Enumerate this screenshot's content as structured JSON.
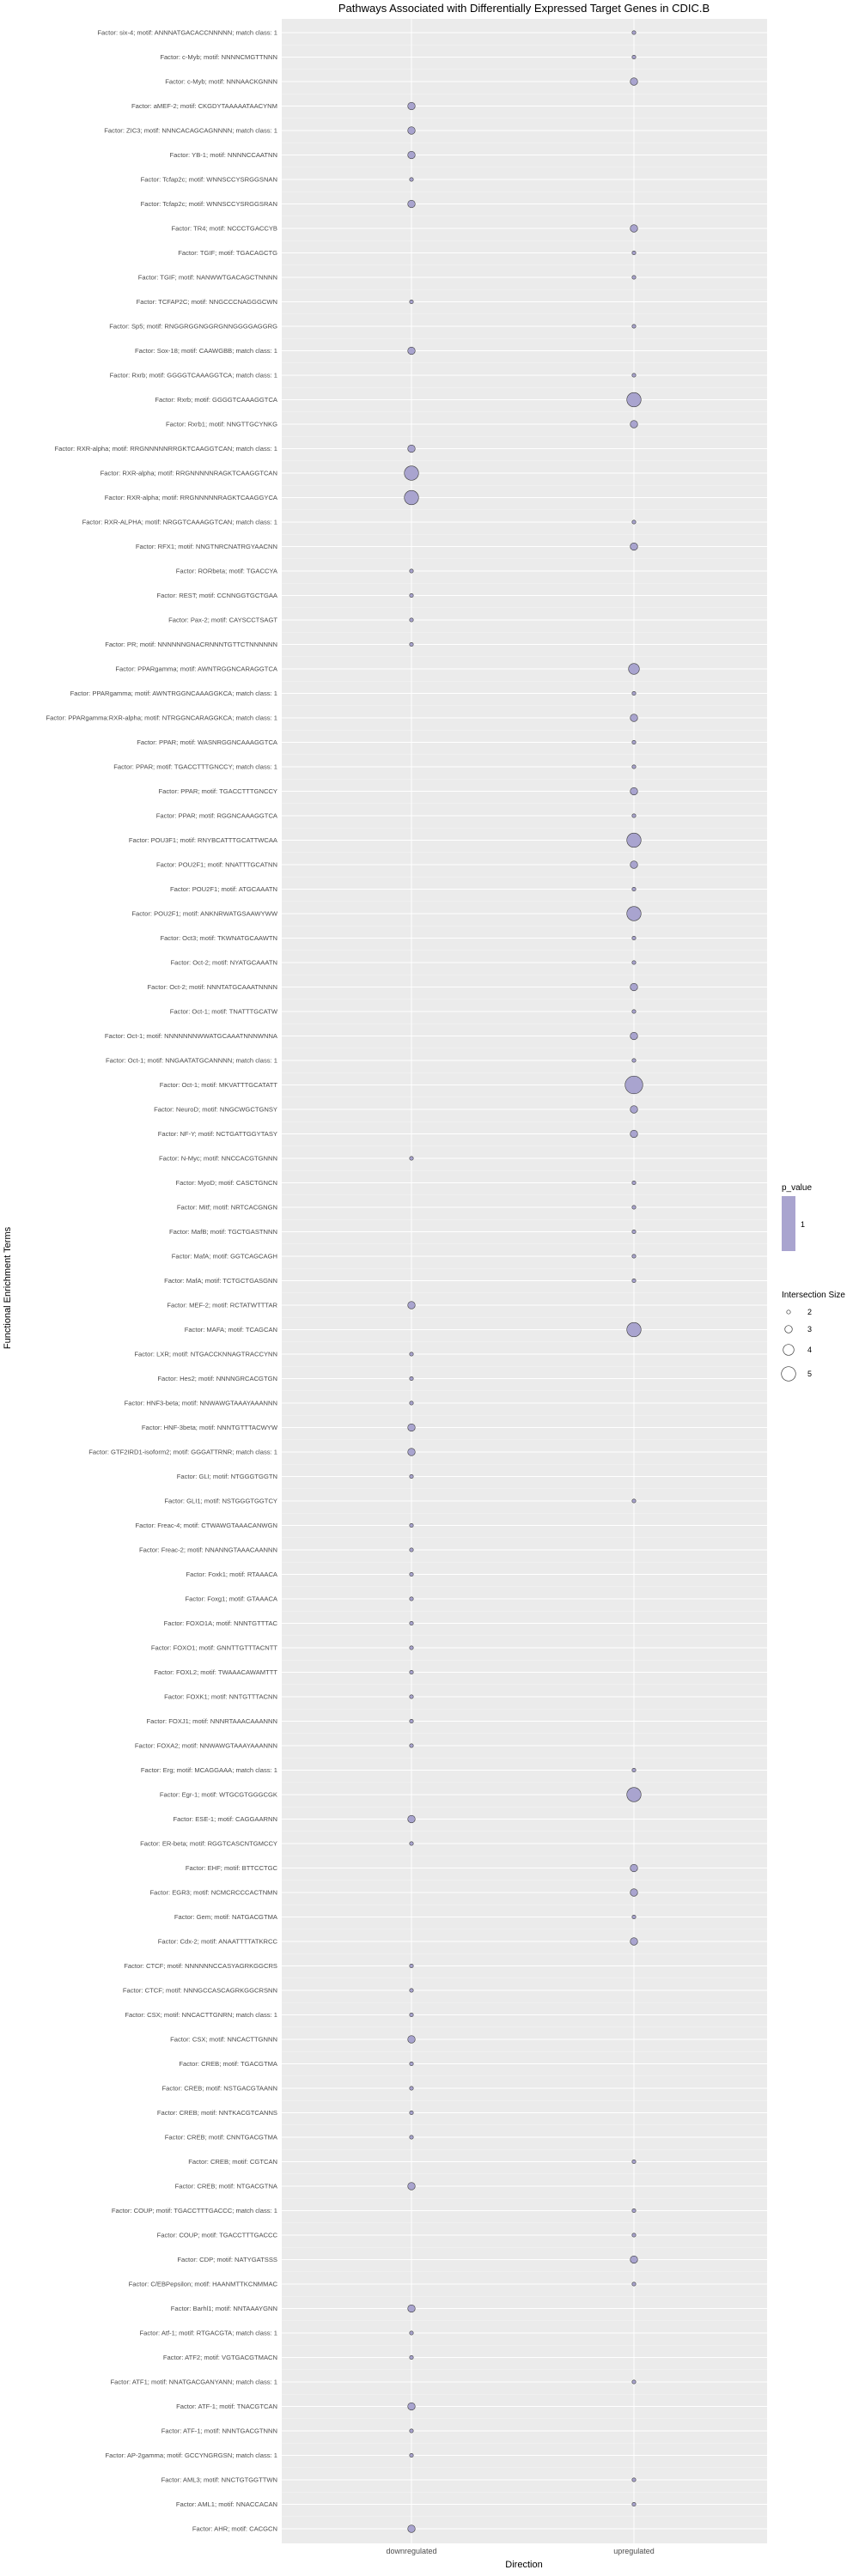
{
  "chart_data": {
    "type": "scatter",
    "title": "Pathways Associated with Differentially Expressed Target Genes in CDIC.B",
    "xlabel": "Direction",
    "ylabel": "Functional Enrichment Terms",
    "categories": [
      "downregulated",
      "upregulated"
    ],
    "terms": [
      "Factor: six-4; motif: ANNNATGACACCNNNNN; match class: 1",
      "Factor: c-Myb; motif: NNNNCMGTTNNN",
      "Factor: c-Myb; motif: NNNAACKGNNN",
      "Factor: aMEF-2; motif: CKGDYTAAAAATAACYNM",
      "Factor: ZIC3; motif: NNNCACAGCAGNNNN; match class: 1",
      "Factor: YB-1; motif: NNNNCCAATNN",
      "Factor: Tcfap2c; motif: WNNSCCYSRGGSNAN",
      "Factor: Tcfap2c; motif: WNNSCCYSRGGSRAN",
      "Factor: TR4; motif: NCCCTGACCYB",
      "Factor: TGIF; motif: TGACAGCTG",
      "Factor: TGIF; motif: NANWWTGACAGCTNNNN",
      "Factor: TCFAP2C; motif: NNGCCCNAGGGCWN",
      "Factor: Sp5; motif: RNGGRGGNGGRGNNGGGGAGGRG",
      "Factor: Sox-18; motif: CAAWGBB; match class: 1",
      "Factor: Rxrb; motif: GGGGTCAAAGGTCA; match class: 1",
      "Factor: Rxrb; motif: GGGGTCAAAGGTCA",
      "Factor: Rxrb1; motif: NNGTTGCYNKG",
      "Factor: RXR-alpha; motif: RRGNNNNNRRGKTCAAGGTCAN; match class: 1",
      "Factor: RXR-alpha; motif: RRGNNNNNRAGKTCAAGGTCAN",
      "Factor: RXR-alpha; motif: RRGNNNNNRAGKTCAAGGYCA",
      "Factor: RXR-ALPHA; motif: NRGGTCAAAGGTCAN; match class: 1",
      "Factor: RFX1; motif: NNGTNRCNATRGYAACNN",
      "Factor: RORbeta; motif: TGACCYA",
      "Factor: REST; motif: CCNNGGTGCTGAA",
      "Factor: Pax-2; motif: CAYSCCTSAGT",
      "Factor: PR; motif: NNNNNNGNACRNNNTGTTCTNNNNNN",
      "Factor: PPARgamma; motif: AWNTRGGNCARAGGTCA",
      "Factor: PPARgamma; motif: AWNTRGGNCAAAGGKCA; match class: 1",
      "Factor: PPARgamma:RXR-alpha; motif: NTRGGNCARAGGKCA; match class: 1",
      "Factor: PPAR; motif: WASNRGGNCAAAGGTCA",
      "Factor: PPAR; motif: TGACCTTTGNCCY; match class: 1",
      "Factor: PPAR; motif: TGACCTTTGNCCY",
      "Factor: PPAR; motif: RGGNCAAAGGTCA",
      "Factor: POU3F1; motif: RNYBCATTTGCATTWCAA",
      "Factor: POU2F1; motif: NNATTTGCATNN",
      "Factor: POU2F1; motif: ATGCAAATN",
      "Factor: POU2F1; motif: ANKNRWATGSAAWYWW",
      "Factor: Oct3; motif: TKWNATGCAAWTN",
      "Factor: Oct-2; motif: NYATGCAAATN",
      "Factor: Oct-2; motif: NNNTATGCAAATNNNN",
      "Factor: Oct-1; motif: TNATTTGCATW",
      "Factor: Oct-1; motif: NNNNNNNWWATGCAAATNNNWNNA",
      "Factor: Oct-1; motif: NNGAATATGCANNNN; match class: 1",
      "Factor: Oct-1; motif: MKVATTTGCATATT",
      "Factor: NeuroD; motif: NNGCWGCTGNSY",
      "Factor: NF-Y; motif: NCTGATTGGYTASY",
      "Factor: N-Myc; motif: NNCCACGTGNNN",
      "Factor: MyoD; motif: CASCTGNCN",
      "Factor: Mitf; motif: NRTCACGNGN",
      "Factor: MafB; motif: TGCTGASTNNN",
      "Factor: MafA; motif: GGTCAGCAGH",
      "Factor: MafA; motif: TCTGCTGASGNN",
      "Factor: MEF-2; motif: RCTATWTTTAR",
      "Factor: MAFA; motif: TCAGCAN",
      "Factor: LXR; motif: NTGACCKNNAGTRACCYNN",
      "Factor: Hes2; motif: NNNNGRCACGTGN",
      "Factor: HNF3-beta; motif: NNWAWGTAAAYAAANNN",
      "Factor: HNF-3beta; motif: NNNTGTTTACWYW",
      "Factor: GTF2IRD1-isoform2; motif: GGGATTRNR; match class: 1",
      "Factor: GLI; motif: NTGGGTGGTN",
      "Factor: GLI1; motif: NSTGGGTGGTCY",
      "Factor: Freac-4; motif: CTWAWGTAAACANWGN",
      "Factor: Freac-2; motif: NNANNGTAAACAANNN",
      "Factor: Foxk1; motif: RTAAACA",
      "Factor: Foxg1; motif: GTAAACA",
      "Factor: FOXO1A; motif: NNNTGTTTAC",
      "Factor: FOXO1; motif: GNNTTGTTTACNTT",
      "Factor: FOXL2; motif: TWAAACAWAMTTT",
      "Factor: FOXK1; motif: NNTGTTTACNN",
      "Factor: FOXJ1; motif: NNNRTAAACAAANNN",
      "Factor: FOXA2; motif: NNWAWGTAAAYAAANNN",
      "Factor: Erg; motif: MCAGGAAA; match class: 1",
      "Factor: Egr-1; motif: WTGCGTGGGCGK",
      "Factor: ESE-1; motif: CAGGAARNN",
      "Factor: ER-beta; motif: RGGTCASCNTGMCCY",
      "Factor: EHF; motif: BTTCCTGC",
      "Factor: EGR3; motif: NCMCRCCCACTNMN",
      "Factor: Gem; motif: NATGACGTMA",
      "Factor: Cdx-2; motif: ANAATTTTATKRCC",
      "Factor: CTCF; motif: NNNNNNCCASYAGRKGGCRS",
      "Factor: CTCF; motif: NNNGCCASCAGRKGGCRSNN",
      "Factor: CSX; motif: NNCACTTGNRN; match class: 1",
      "Factor: CSX; motif: NNCACTTGNNN",
      "Factor: CREB; motif: TGACGTMA",
      "Factor: CREB; motif: NSTGACGTAANN",
      "Factor: CREB; motif: NNTKACGTCANNS",
      "Factor: CREB; motif: CNNTGACGTMA",
      "Factor: CREB; motif: CGTCAN",
      "Factor: CREB; motif: NTGACGTNA",
      "Factor: COUP; motif: TGACCTTTGACCC; match class: 1",
      "Factor: COUP; motif: TGACCTTTGACCC",
      "Factor: CDP; motif: NATYGATSSS",
      "Factor: C/EBPepsilon; motif: HAANMTTKCNMMAC",
      "Factor: Barhl1; motif: NNTAAAYGNN",
      "Factor: Atf-1; motif: RTGACGTA; match class: 1",
      "Factor: ATF2; motif: VGTGACGTMACN",
      "Factor: ATF1; motif: NNATGACGANYANN; match class: 1",
      "Factor: ATF-1; motif: TNACGTCAN",
      "Factor: ATF-1; motif: NNNTGACGTNNN",
      "Factor: AP-2gamma; motif: GCCYNGRGSN; match class: 1",
      "Factor: AML3; motif: NNCTGTGGTTWN",
      "Factor: AML1; motif: NNACCACAN",
      "Factor: AHR; motif: CACGCN"
    ],
    "points": [
      {
        "term": 0,
        "x": "upregulated",
        "size": 2
      },
      {
        "term": 1,
        "x": "upregulated",
        "size": 2
      },
      {
        "term": 2,
        "x": "upregulated",
        "size": 3
      },
      {
        "term": 3,
        "x": "downregulated",
        "size": 3
      },
      {
        "term": 4,
        "x": "downregulated",
        "size": 3
      },
      {
        "term": 5,
        "x": "downregulated",
        "size": 3
      },
      {
        "term": 6,
        "x": "downregulated",
        "size": 2
      },
      {
        "term": 7,
        "x": "downregulated",
        "size": 3
      },
      {
        "term": 8,
        "x": "upregulated",
        "size": 3
      },
      {
        "term": 9,
        "x": "upregulated",
        "size": 2
      },
      {
        "term": 10,
        "x": "upregulated",
        "size": 2
      },
      {
        "term": 11,
        "x": "downregulated",
        "size": 2
      },
      {
        "term": 12,
        "x": "upregulated",
        "size": 2
      },
      {
        "term": 13,
        "x": "downregulated",
        "size": 3
      },
      {
        "term": 14,
        "x": "upregulated",
        "size": 2
      },
      {
        "term": 15,
        "x": "upregulated",
        "size": 5
      },
      {
        "term": 16,
        "x": "upregulated",
        "size": 3
      },
      {
        "term": 17,
        "x": "downregulated",
        "size": 3
      },
      {
        "term": 18,
        "x": "downregulated",
        "size": 5
      },
      {
        "term": 19,
        "x": "downregulated",
        "size": 5
      },
      {
        "term": 20,
        "x": "upregulated",
        "size": 2
      },
      {
        "term": 21,
        "x": "upregulated",
        "size": 3
      },
      {
        "term": 22,
        "x": "downregulated",
        "size": 2
      },
      {
        "term": 23,
        "x": "downregulated",
        "size": 2
      },
      {
        "term": 24,
        "x": "downregulated",
        "size": 2
      },
      {
        "term": 25,
        "x": "downregulated",
        "size": 2
      },
      {
        "term": 26,
        "x": "upregulated",
        "size": 4
      },
      {
        "term": 27,
        "x": "upregulated",
        "size": 2
      },
      {
        "term": 28,
        "x": "upregulated",
        "size": 3
      },
      {
        "term": 29,
        "x": "upregulated",
        "size": 2
      },
      {
        "term": 30,
        "x": "upregulated",
        "size": 2
      },
      {
        "term": 31,
        "x": "upregulated",
        "size": 3
      },
      {
        "term": 32,
        "x": "upregulated",
        "size": 2
      },
      {
        "term": 33,
        "x": "upregulated",
        "size": 5
      },
      {
        "term": 34,
        "x": "upregulated",
        "size": 3
      },
      {
        "term": 35,
        "x": "upregulated",
        "size": 2
      },
      {
        "term": 36,
        "x": "upregulated",
        "size": 5
      },
      {
        "term": 37,
        "x": "upregulated",
        "size": 2
      },
      {
        "term": 38,
        "x": "upregulated",
        "size": 2
      },
      {
        "term": 39,
        "x": "upregulated",
        "size": 3
      },
      {
        "term": 40,
        "x": "upregulated",
        "size": 2
      },
      {
        "term": 41,
        "x": "upregulated",
        "size": 3
      },
      {
        "term": 42,
        "x": "upregulated",
        "size": 2
      },
      {
        "term": 43,
        "x": "upregulated",
        "size": 6
      },
      {
        "term": 44,
        "x": "upregulated",
        "size": 3
      },
      {
        "term": 45,
        "x": "upregulated",
        "size": 3
      },
      {
        "term": 46,
        "x": "downregulated",
        "size": 2
      },
      {
        "term": 47,
        "x": "upregulated",
        "size": 2
      },
      {
        "term": 48,
        "x": "upregulated",
        "size": 2
      },
      {
        "term": 49,
        "x": "upregulated",
        "size": 2
      },
      {
        "term": 50,
        "x": "upregulated",
        "size": 2
      },
      {
        "term": 51,
        "x": "upregulated",
        "size": 2
      },
      {
        "term": 52,
        "x": "downregulated",
        "size": 3
      },
      {
        "term": 53,
        "x": "upregulated",
        "size": 5
      },
      {
        "term": 54,
        "x": "downregulated",
        "size": 2
      },
      {
        "term": 55,
        "x": "downregulated",
        "size": 2
      },
      {
        "term": 56,
        "x": "downregulated",
        "size": 2
      },
      {
        "term": 57,
        "x": "downregulated",
        "size": 3
      },
      {
        "term": 58,
        "x": "downregulated",
        "size": 3
      },
      {
        "term": 59,
        "x": "downregulated",
        "size": 2
      },
      {
        "term": 60,
        "x": "upregulated",
        "size": 2
      },
      {
        "term": 61,
        "x": "downregulated",
        "size": 2
      },
      {
        "term": 62,
        "x": "downregulated",
        "size": 2
      },
      {
        "term": 63,
        "x": "downregulated",
        "size": 2
      },
      {
        "term": 64,
        "x": "downregulated",
        "size": 2
      },
      {
        "term": 65,
        "x": "downregulated",
        "size": 2
      },
      {
        "term": 66,
        "x": "downregulated",
        "size": 2
      },
      {
        "term": 67,
        "x": "downregulated",
        "size": 2
      },
      {
        "term": 68,
        "x": "downregulated",
        "size": 2
      },
      {
        "term": 69,
        "x": "downregulated",
        "size": 2
      },
      {
        "term": 70,
        "x": "downregulated",
        "size": 2
      },
      {
        "term": 71,
        "x": "upregulated",
        "size": 2
      },
      {
        "term": 72,
        "x": "upregulated",
        "size": 5
      },
      {
        "term": 73,
        "x": "downregulated",
        "size": 3
      },
      {
        "term": 74,
        "x": "downregulated",
        "size": 2
      },
      {
        "term": 75,
        "x": "upregulated",
        "size": 3
      },
      {
        "term": 76,
        "x": "upregulated",
        "size": 3
      },
      {
        "term": 77,
        "x": "upregulated",
        "size": 2
      },
      {
        "term": 78,
        "x": "upregulated",
        "size": 3
      },
      {
        "term": 79,
        "x": "downregulated",
        "size": 2
      },
      {
        "term": 80,
        "x": "downregulated",
        "size": 2
      },
      {
        "term": 81,
        "x": "downregulated",
        "size": 2
      },
      {
        "term": 82,
        "x": "downregulated",
        "size": 3
      },
      {
        "term": 83,
        "x": "downregulated",
        "size": 2
      },
      {
        "term": 84,
        "x": "downregulated",
        "size": 2
      },
      {
        "term": 85,
        "x": "downregulated",
        "size": 2
      },
      {
        "term": 86,
        "x": "downregulated",
        "size": 2
      },
      {
        "term": 87,
        "x": "upregulated",
        "size": 2
      },
      {
        "term": 88,
        "x": "downregulated",
        "size": 3
      },
      {
        "term": 89,
        "x": "upregulated",
        "size": 2
      },
      {
        "term": 90,
        "x": "upregulated",
        "size": 2
      },
      {
        "term": 91,
        "x": "upregulated",
        "size": 3
      },
      {
        "term": 92,
        "x": "upregulated",
        "size": 2
      },
      {
        "term": 93,
        "x": "downregulated",
        "size": 3
      },
      {
        "term": 94,
        "x": "downregulated",
        "size": 2
      },
      {
        "term": 95,
        "x": "downregulated",
        "size": 2
      },
      {
        "term": 96,
        "x": "upregulated",
        "size": 2
      },
      {
        "term": 97,
        "x": "downregulated",
        "size": 3
      },
      {
        "term": 98,
        "x": "downregulated",
        "size": 2
      },
      {
        "term": 99,
        "x": "downregulated",
        "size": 2
      },
      {
        "term": 100,
        "x": "upregulated",
        "size": 2
      },
      {
        "term": 101,
        "x": "upregulated",
        "size": 2
      },
      {
        "term": 102,
        "x": "downregulated",
        "size": 3
      }
    ],
    "color_legend": {
      "title": "p_value",
      "label": "1",
      "color": "#a9a4cf"
    },
    "size_legend": {
      "title": "Intersection Size",
      "values": [
        2,
        3,
        4,
        5
      ]
    },
    "legend_position": "right",
    "grid": true,
    "panel_color": "#ebebeb",
    "point_color": "#a9a4cf"
  }
}
